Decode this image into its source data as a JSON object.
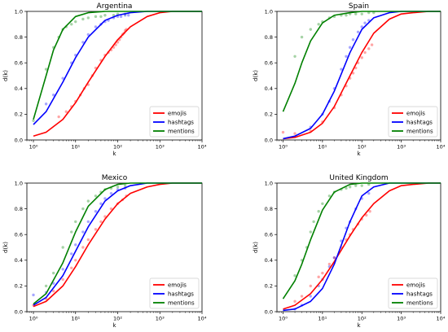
{
  "chart_data": [
    {
      "type": "scatter",
      "title": "Argentina",
      "xlabel": "k",
      "ylabel": "d(k)",
      "xscale": "log",
      "xlim": [
        0.7,
        10000
      ],
      "ylim": [
        0.0,
        1.0
      ],
      "xticks": [
        "10⁰",
        "10¹",
        "10²",
        "10³",
        "10⁴"
      ],
      "yticks": [
        "0.0",
        "0.2",
        "0.4",
        "0.6",
        "0.8",
        "1.0"
      ],
      "grid": false,
      "legend": "bottom-right",
      "series": [
        {
          "name": "emojis",
          "color": "#ff0000",
          "fit_curve": {
            "k": [
              1,
              2,
              5,
              10,
              20,
              50,
              100,
              200,
              500,
              1000,
              2000,
              5000,
              10000
            ],
            "d": [
              0.03,
              0.06,
              0.16,
              0.29,
              0.45,
              0.65,
              0.78,
              0.88,
              0.96,
              0.99,
              1.0,
              1.0,
              1.0
            ]
          },
          "points": {
            "k": [
              4,
              6,
              8,
              10,
              13,
              16,
              20,
              25,
              30,
              40,
              50,
              60,
              70,
              80,
              90,
              100,
              110,
              120,
              130,
              140,
              150,
              160
            ],
            "d": [
              0.18,
              0.22,
              0.26,
              0.3,
              0.35,
              0.4,
              0.43,
              0.5,
              0.56,
              0.62,
              0.66,
              0.68,
              0.7,
              0.72,
              0.74,
              0.76,
              0.78,
              0.8,
              0.82,
              0.83,
              0.85,
              0.86
            ]
          }
        },
        {
          "name": "hashtags",
          "color": "#0000ff",
          "fit_curve": {
            "k": [
              1,
              2,
              5,
              10,
              20,
              50,
              100,
              200,
              500,
              1000,
              2000,
              5000,
              10000
            ],
            "d": [
              0.12,
              0.22,
              0.45,
              0.64,
              0.8,
              0.93,
              0.97,
              0.99,
              1.0,
              1.0,
              1.0,
              1.0,
              1.0
            ]
          },
          "points": {
            "k": [
              2,
              3,
              5,
              8,
              10,
              15,
              20,
              30,
              40,
              50,
              60,
              80,
              100,
              120,
              150,
              180
            ],
            "d": [
              0.28,
              0.35,
              0.48,
              0.6,
              0.66,
              0.76,
              0.82,
              0.88,
              0.9,
              0.92,
              0.93,
              0.95,
              0.96,
              0.96,
              0.97,
              0.97
            ]
          }
        },
        {
          "name": "mentions",
          "color": "#008000",
          "fit_curve": {
            "k": [
              1,
              2,
              3,
              5,
              10,
              20,
              50,
              100,
              200,
              500,
              1000,
              10000
            ],
            "d": [
              0.16,
              0.5,
              0.7,
              0.86,
              0.96,
              0.99,
              1.0,
              1.0,
              1.0,
              1.0,
              1.0,
              1.0
            ]
          },
          "points": {
            "k": [
              1,
              2,
              3,
              4,
              5,
              6,
              8,
              10,
              15,
              20,
              30,
              40,
              50,
              80,
              100,
              150
            ],
            "d": [
              0.15,
              0.55,
              0.72,
              0.8,
              0.86,
              0.88,
              0.9,
              0.92,
              0.94,
              0.95,
              0.96,
              0.96,
              0.97,
              0.97,
              0.98,
              0.98
            ]
          }
        }
      ]
    },
    {
      "type": "scatter",
      "title": "Spain",
      "xlabel": "k",
      "ylabel": "d(k)",
      "xscale": "log",
      "xlim": [
        0.7,
        10000
      ],
      "ylim": [
        0.0,
        1.0
      ],
      "xticks": [
        "10⁰",
        "10¹",
        "10²",
        "10³",
        "10⁴"
      ],
      "yticks": [
        "0.0",
        "0.2",
        "0.4",
        "0.6",
        "0.8",
        "1.0"
      ],
      "grid": false,
      "legend": "bottom-right",
      "series": [
        {
          "name": "emojis",
          "color": "#ff0000",
          "fit_curve": {
            "k": [
              1,
              2,
              5,
              10,
              20,
              50,
              100,
              200,
              500,
              1000,
              2000,
              5000,
              10000
            ],
            "d": [
              0.01,
              0.02,
              0.06,
              0.13,
              0.26,
              0.5,
              0.68,
              0.83,
              0.94,
              0.98,
              0.99,
              1.0,
              1.0
            ]
          },
          "points": {
            "k": [
              1,
              2,
              5,
              10,
              20,
              30,
              40,
              50,
              60,
              70,
              80,
              100,
              120,
              150,
              180
            ],
            "d": [
              0.06,
              0.05,
              0.07,
              0.14,
              0.25,
              0.35,
              0.42,
              0.48,
              0.52,
              0.56,
              0.6,
              0.64,
              0.68,
              0.71,
              0.74
            ]
          }
        },
        {
          "name": "hashtags",
          "color": "#0000ff",
          "fit_curve": {
            "k": [
              1,
              2,
              5,
              10,
              20,
              50,
              100,
              200,
              500,
              1000,
              2000,
              5000,
              10000
            ],
            "d": [
              0.01,
              0.03,
              0.09,
              0.2,
              0.38,
              0.68,
              0.86,
              0.95,
              0.99,
              1.0,
              1.0,
              1.0,
              1.0
            ]
          },
          "points": {
            "k": [
              5,
              10,
              15,
              20,
              30,
              40,
              50,
              60,
              80,
              100,
              120,
              150
            ],
            "d": [
              0.1,
              0.2,
              0.3,
              0.4,
              0.55,
              0.65,
              0.72,
              0.78,
              0.84,
              0.88,
              0.91,
              0.93
            ]
          }
        },
        {
          "name": "mentions",
          "color": "#008000",
          "fit_curve": {
            "k": [
              1,
              2,
              3,
              5,
              10,
              20,
              50,
              100,
              200,
              500,
              1000,
              10000
            ],
            "d": [
              0.22,
              0.44,
              0.6,
              0.77,
              0.91,
              0.97,
              0.99,
              1.0,
              1.0,
              1.0,
              1.0,
              1.0
            ]
          },
          "points": {
            "k": [
              2,
              3,
              5,
              8,
              10,
              15,
              20,
              30,
              40,
              50,
              70,
              100,
              150,
              200
            ],
            "d": [
              0.65,
              0.8,
              0.86,
              0.9,
              0.92,
              0.95,
              0.96,
              0.97,
              0.97,
              0.98,
              0.98,
              0.98,
              0.99,
              0.99
            ]
          }
        }
      ]
    },
    {
      "type": "scatter",
      "title": "Mexico",
      "xlabel": "k",
      "ylabel": "d(k)",
      "xscale": "log",
      "xlim": [
        0.7,
        10000
      ],
      "ylim": [
        0.0,
        1.0
      ],
      "xticks": [
        "10⁰",
        "10¹",
        "10²",
        "10³",
        "10⁴"
      ],
      "yticks": [
        "0.0",
        "0.2",
        "0.4",
        "0.6",
        "0.8",
        "1.0"
      ],
      "grid": false,
      "legend": "bottom-right",
      "series": [
        {
          "name": "emojis",
          "color": "#ff0000",
          "fit_curve": {
            "k": [
              1,
              2,
              5,
              10,
              20,
              50,
              100,
              200,
              500,
              1000,
              2000,
              5000,
              10000
            ],
            "d": [
              0.04,
              0.08,
              0.2,
              0.35,
              0.52,
              0.72,
              0.84,
              0.92,
              0.97,
              0.99,
              1.0,
              1.0,
              1.0
            ]
          },
          "points": {
            "k": [
              1,
              2,
              3,
              5,
              8,
              10,
              15,
              20,
              30,
              40,
              50,
              70,
              100,
              130,
              160
            ],
            "d": [
              0.05,
              0.1,
              0.16,
              0.25,
              0.34,
              0.4,
              0.5,
              0.56,
              0.64,
              0.7,
              0.74,
              0.8,
              0.84,
              0.87,
              0.9
            ]
          }
        },
        {
          "name": "hashtags",
          "color": "#0000ff",
          "fit_curve": {
            "k": [
              1,
              2,
              5,
              10,
              20,
              50,
              100,
              200,
              500,
              1000,
              2000,
              5000,
              10000
            ],
            "d": [
              0.05,
              0.11,
              0.28,
              0.47,
              0.66,
              0.86,
              0.94,
              0.98,
              1.0,
              1.0,
              1.0,
              1.0,
              1.0
            ]
          },
          "points": {
            "k": [
              1,
              2,
              3,
              5,
              8,
              10,
              15,
              20,
              30,
              40,
              50,
              70,
              100,
              150
            ],
            "d": [
              0.13,
              0.15,
              0.22,
              0.33,
              0.45,
              0.52,
              0.62,
              0.7,
              0.78,
              0.84,
              0.88,
              0.92,
              0.95,
              0.96
            ]
          }
        },
        {
          "name": "mentions",
          "color": "#008000",
          "fit_curve": {
            "k": [
              1,
              2,
              5,
              10,
              20,
              50,
              100,
              200,
              500,
              1000,
              2000,
              5000,
              10000
            ],
            "d": [
              0.06,
              0.14,
              0.38,
              0.62,
              0.82,
              0.95,
              0.99,
              1.0,
              1.0,
              1.0,
              1.0,
              1.0,
              1.0
            ]
          },
          "points": {
            "k": [
              2,
              3,
              5,
              8,
              10,
              15,
              20,
              30,
              40,
              50,
              70,
              100,
              150
            ],
            "d": [
              0.2,
              0.3,
              0.5,
              0.62,
              0.7,
              0.8,
              0.86,
              0.9,
              0.93,
              0.95,
              0.96,
              0.97,
              0.98
            ]
          }
        }
      ]
    },
    {
      "type": "scatter",
      "title": "United Kingdom",
      "xlabel": "k",
      "ylabel": "d(k)",
      "xscale": "log",
      "xlim": [
        0.7,
        10000
      ],
      "ylim": [
        0.0,
        1.0
      ],
      "xticks": [
        "10⁰",
        "10¹",
        "10²",
        "10³",
        "10⁴"
      ],
      "yticks": [
        "0.0",
        "0.2",
        "0.4",
        "0.6",
        "0.8",
        "1.0"
      ],
      "grid": false,
      "legend": "bottom-right",
      "series": [
        {
          "name": "emojis",
          "color": "#ff0000",
          "fit_curve": {
            "k": [
              1,
              2,
              5,
              10,
              20,
              50,
              100,
              200,
              500,
              1000,
              2000,
              5000,
              10000
            ],
            "d": [
              0.02,
              0.05,
              0.14,
              0.25,
              0.39,
              0.59,
              0.73,
              0.84,
              0.94,
              0.98,
              0.99,
              1.0,
              1.0
            ]
          },
          "points": {
            "k": [
              2,
              3,
              5,
              8,
              10,
              15,
              20,
              30,
              40,
              50,
              60,
              80,
              100,
              130,
              160
            ],
            "d": [
              0.08,
              0.12,
              0.2,
              0.27,
              0.3,
              0.37,
              0.42,
              0.5,
              0.56,
              0.6,
              0.64,
              0.68,
              0.72,
              0.75,
              0.78
            ]
          }
        },
        {
          "name": "hashtags",
          "color": "#0000ff",
          "fit_curve": {
            "k": [
              1,
              2,
              5,
              10,
              20,
              50,
              100,
              200,
              500,
              1000,
              2000,
              5000,
              10000
            ],
            "d": [
              0.01,
              0.02,
              0.08,
              0.18,
              0.37,
              0.7,
              0.9,
              0.97,
              1.0,
              1.0,
              1.0,
              1.0,
              1.0
            ]
          },
          "points": {
            "k": [
              2,
              3,
              5,
              8,
              10,
              15,
              20,
              30,
              40,
              50,
              70,
              100,
              150
            ],
            "d": [
              0.02,
              0.05,
              0.12,
              0.2,
              0.25,
              0.35,
              0.42,
              0.55,
              0.65,
              0.7,
              0.8,
              0.88,
              0.92
            ]
          }
        },
        {
          "name": "mentions",
          "color": "#008000",
          "fit_curve": {
            "k": [
              1,
              2,
              3,
              5,
              10,
              20,
              50,
              100,
              200,
              500,
              1000,
              10000
            ],
            "d": [
              0.1,
              0.24,
              0.37,
              0.56,
              0.79,
              0.93,
              0.99,
              1.0,
              1.0,
              1.0,
              1.0,
              1.0
            ]
          },
          "points": {
            "k": [
              2,
              3,
              4,
              5,
              6,
              8,
              10,
              15,
              20,
              30,
              40,
              50,
              70,
              100,
              150
            ],
            "d": [
              0.28,
              0.4,
              0.5,
              0.62,
              0.7,
              0.78,
              0.84,
              0.9,
              0.93,
              0.95,
              0.96,
              0.97,
              0.98,
              0.98,
              0.99
            ]
          }
        }
      ]
    }
  ]
}
